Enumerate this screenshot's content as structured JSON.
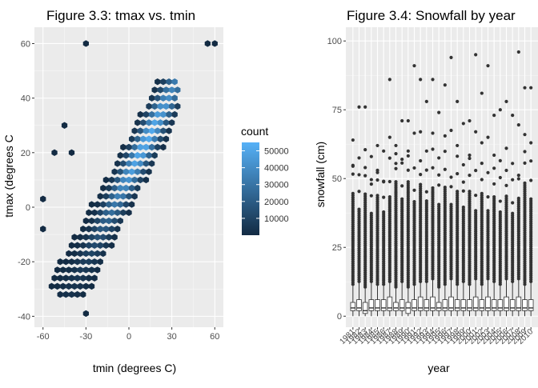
{
  "chart_data": [
    {
      "type": "heatmap",
      "title": "Figure 3.3: tmax vs. tmin",
      "xlabel": "tmin (degrees C)",
      "ylabel": "tmax (degrees C",
      "xlim": [
        -66,
        66
      ],
      "ylim": [
        -44,
        66
      ],
      "xticks": [
        -60,
        -30,
        0,
        30,
        60
      ],
      "xtick_labels": [
        "-60",
        "-30",
        "0",
        "30",
        "60"
      ],
      "yticks": [
        -40,
        -20,
        0,
        20,
        40,
        60
      ],
      "ytick_labels": [
        "-40",
        "-20",
        "0",
        "20",
        "40",
        "60"
      ],
      "grid": true,
      "legend": {
        "title": "count",
        "placement": "right",
        "range": [
          0,
          55000
        ],
        "ticks": [
          10000,
          20000,
          30000,
          40000,
          50000
        ],
        "tick_labels": [
          "10000",
          "20000",
          "30000",
          "40000",
          "50000"
        ],
        "low_color": "#132B43",
        "high_color": "#56B1F7"
      },
      "density": {
        "note": "hexbin counts, dense band along tmax ≈ tmin + 12",
        "slope": 1.0,
        "intercept": 12,
        "peak_count": 52000,
        "sparse_points": [
          [
            -30,
            60
          ],
          [
            -30,
            -39
          ],
          [
            -60,
            3
          ],
          [
            -60,
            -8
          ],
          [
            -52,
            20
          ],
          [
            -45,
            30
          ],
          [
            55,
            60
          ],
          [
            60,
            60
          ],
          [
            -40,
            20
          ]
        ]
      }
    },
    {
      "type": "box",
      "title": "Figure 3.4: Snowfall by year",
      "xlabel": "year",
      "ylabel": "snowfall (cm)",
      "ylim": [
        -4,
        105
      ],
      "yticks": [
        0,
        25,
        50,
        75,
        100
      ],
      "ytick_labels": [
        "0",
        "25",
        "50",
        "75",
        "100"
      ],
      "grid": true,
      "x_tick_labels": [
        "1981",
        "1982",
        "1983",
        "1984",
        "1985",
        "1986",
        "1987",
        "1988",
        "1989",
        "1990",
        "1991",
        "1992",
        "1993",
        "1994",
        "1995",
        "1996",
        "1997",
        "1998",
        "1999",
        "2000",
        "2001",
        "2002",
        "2003",
        "2004",
        "2005",
        "2006",
        "2007",
        "2008",
        "2009",
        "2010"
      ],
      "box_stats": {
        "q1": [
          2,
          2,
          1,
          2,
          2,
          2,
          2,
          2,
          2,
          1,
          2,
          2,
          2,
          2,
          2,
          2,
          2,
          2,
          2,
          2,
          2,
          2,
          2,
          2,
          2,
          2,
          2,
          2,
          2,
          2
        ],
        "median": [
          3,
          3,
          2,
          3,
          3,
          3,
          3,
          3,
          3,
          3,
          3,
          3,
          3,
          3,
          3,
          3,
          3,
          3,
          3,
          3,
          3,
          3,
          3,
          3,
          3,
          3,
          3,
          3,
          3,
          3
        ],
        "q3": [
          5,
          6,
          5,
          6,
          6,
          6,
          7,
          5,
          6,
          5,
          6,
          7,
          6,
          7,
          5,
          6,
          7,
          6,
          6,
          6,
          7,
          6,
          7,
          6,
          6,
          7,
          6,
          7,
          6,
          6
        ],
        "whisker_high": [
          11,
          12,
          10,
          12,
          11,
          11,
          12,
          10,
          12,
          10,
          11,
          12,
          12,
          13,
          10,
          11,
          13,
          11,
          12,
          11,
          13,
          11,
          13,
          12,
          11,
          13,
          12,
          13,
          11,
          12
        ],
        "outlier_max": [
          64,
          76,
          76,
          58,
          62,
          60,
          86,
          62,
          71,
          71,
          91,
          86,
          78,
          86,
          74,
          84,
          94,
          78,
          70,
          71,
          95,
          81,
          91,
          73,
          75,
          78,
          73,
          96,
          83,
          83
        ]
      }
    }
  ]
}
